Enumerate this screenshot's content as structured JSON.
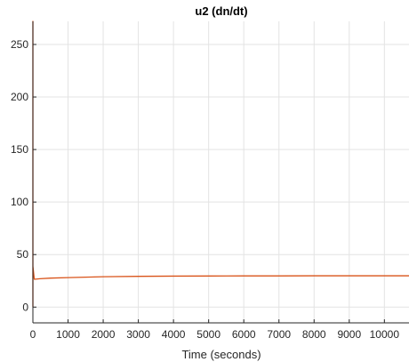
{
  "chart_data": {
    "type": "line",
    "title": "u2 (dn/dt)",
    "xlabel": "Time (seconds)",
    "ylabel": "",
    "xlim": [
      0,
      10700
    ],
    "ylim": [
      -15,
      272
    ],
    "grid": true,
    "legend": "none",
    "xticks": [
      0,
      1000,
      2000,
      3000,
      4000,
      5000,
      6000,
      7000,
      8000,
      9000,
      10000
    ],
    "xtick_labels": [
      "0",
      "1000",
      "2000",
      "3000",
      "4000",
      "5000",
      "6000",
      "7000",
      "8000",
      "9000",
      "10000"
    ],
    "yticks": [
      0,
      50,
      100,
      150,
      200,
      250
    ],
    "ytick_labels": [
      "0",
      "50",
      "100",
      "150",
      "200",
      "250"
    ],
    "series": [
      {
        "color": "#D95319",
        "x": [
          0,
          0,
          0,
          40,
          200,
          500,
          1000,
          1500,
          2000,
          3000,
          4000,
          5000,
          6000,
          7000,
          8000,
          9000,
          10000,
          10700
        ],
        "y": [
          0,
          272,
          39,
          26.5,
          27,
          27.6,
          28.1,
          28.5,
          28.9,
          29.3,
          29.5,
          29.6,
          29.7,
          29.7,
          29.8,
          29.8,
          29.8,
          29.8
        ]
      }
    ]
  }
}
